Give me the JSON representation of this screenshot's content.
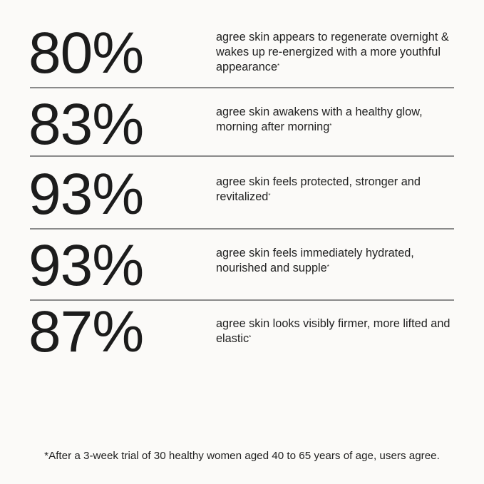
{
  "stats": [
    {
      "value": "80%",
      "text": "agree skin appears to regenerate overnight & wakes up re-energized with a more youthful appearance",
      "mark": "*"
    },
    {
      "value": "83%",
      "text": "agree skin awakens with a healthy glow, morning after morning",
      "mark": "*"
    },
    {
      "value": "93%",
      "text": "agree skin feels protected, stronger and revitalized",
      "mark": "*"
    },
    {
      "value": "93%",
      "text": "agree skin feels immediately hydrated, nourished and supple",
      "mark": "*"
    },
    {
      "value": "87%",
      "text": "agree skin looks visibly firmer, more lifted and elastic",
      "mark": "*"
    }
  ],
  "footnote": "*After a 3-week trial of 30 healthy women aged 40 to 65 years of age, users agree.",
  "colors": {
    "background": "#fbfaf8",
    "text": "#1c1c1c",
    "divider": "#8a8a8a"
  }
}
